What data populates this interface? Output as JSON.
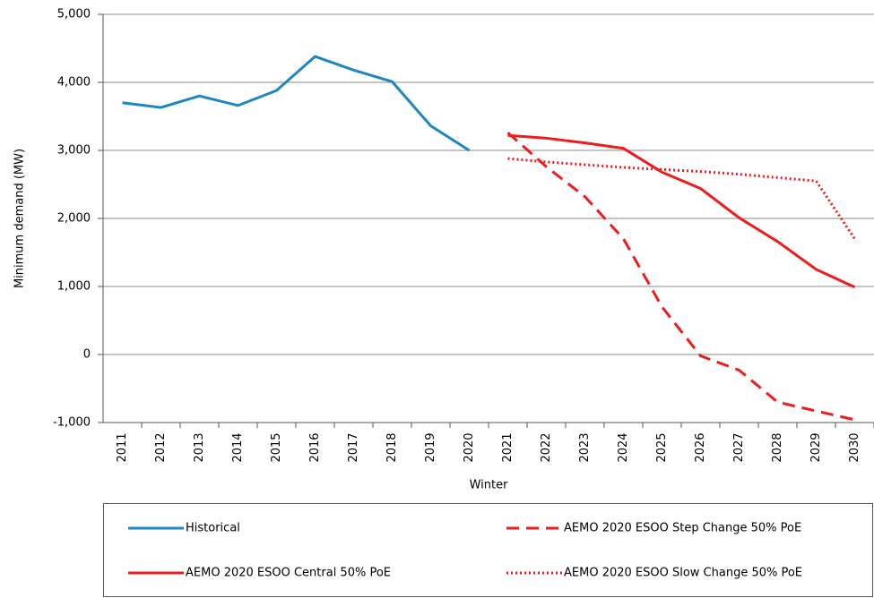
{
  "chart_data": {
    "type": "line",
    "x_label": "Winter",
    "y_label": "Minimum demand (MW)",
    "categories": [
      "2011",
      "2012",
      "2013",
      "2014",
      "2015",
      "2016",
      "2017",
      "2018",
      "2019",
      "2020",
      "2021",
      "2022",
      "2023",
      "2024",
      "2025",
      "2026",
      "2027",
      "2028",
      "2029",
      "2030"
    ],
    "series": [
      {
        "name": "Historical",
        "color": "#1f86c1",
        "line_style": "solid",
        "values": [
          3700,
          3630,
          3800,
          3660,
          3880,
          4380,
          4180,
          4010,
          3360,
          3000,
          null,
          null,
          null,
          null,
          null,
          null,
          null,
          null,
          null,
          null
        ]
      },
      {
        "name": "AEMO 2020 ESOO Step Change 50% PoE",
        "color": "#ee1c1c",
        "line_style": "dashed",
        "values": [
          null,
          null,
          null,
          null,
          null,
          null,
          null,
          null,
          null,
          null,
          3260,
          2760,
          2320,
          1700,
          700,
          -20,
          -230,
          -700,
          -830,
          -960
        ]
      },
      {
        "name": "AEMO 2020 ESOO Central 50% PoE",
        "color": "#ee1c1c",
        "line_style": "solid",
        "values": [
          null,
          null,
          null,
          null,
          null,
          null,
          null,
          null,
          null,
          null,
          3220,
          3180,
          3110,
          3030,
          2680,
          2440,
          2010,
          1660,
          1250,
          990
        ]
      },
      {
        "name": "AEMO 2020 ESOO Slow Change 50% PoE",
        "color": "#ee1c1c",
        "line_style": "dotted",
        "values": [
          null,
          null,
          null,
          null,
          null,
          null,
          null,
          null,
          null,
          null,
          2880,
          2830,
          2790,
          2750,
          2720,
          2690,
          2650,
          2600,
          2550,
          1700
        ]
      }
    ],
    "ylim": [
      -1000,
      5000
    ],
    "yticks": [
      {
        "value": -1000,
        "label": "-1,000"
      },
      0,
      {
        "value": 1000,
        "label": "1,000"
      },
      {
        "value": 2000,
        "label": "2,000"
      },
      {
        "value": 3000,
        "label": "3,000"
      },
      {
        "value": 4000,
        "label": "4,000"
      },
      {
        "value": 5000,
        "label": "5,000"
      }
    ],
    "grid": true,
    "legend": "bottom"
  }
}
